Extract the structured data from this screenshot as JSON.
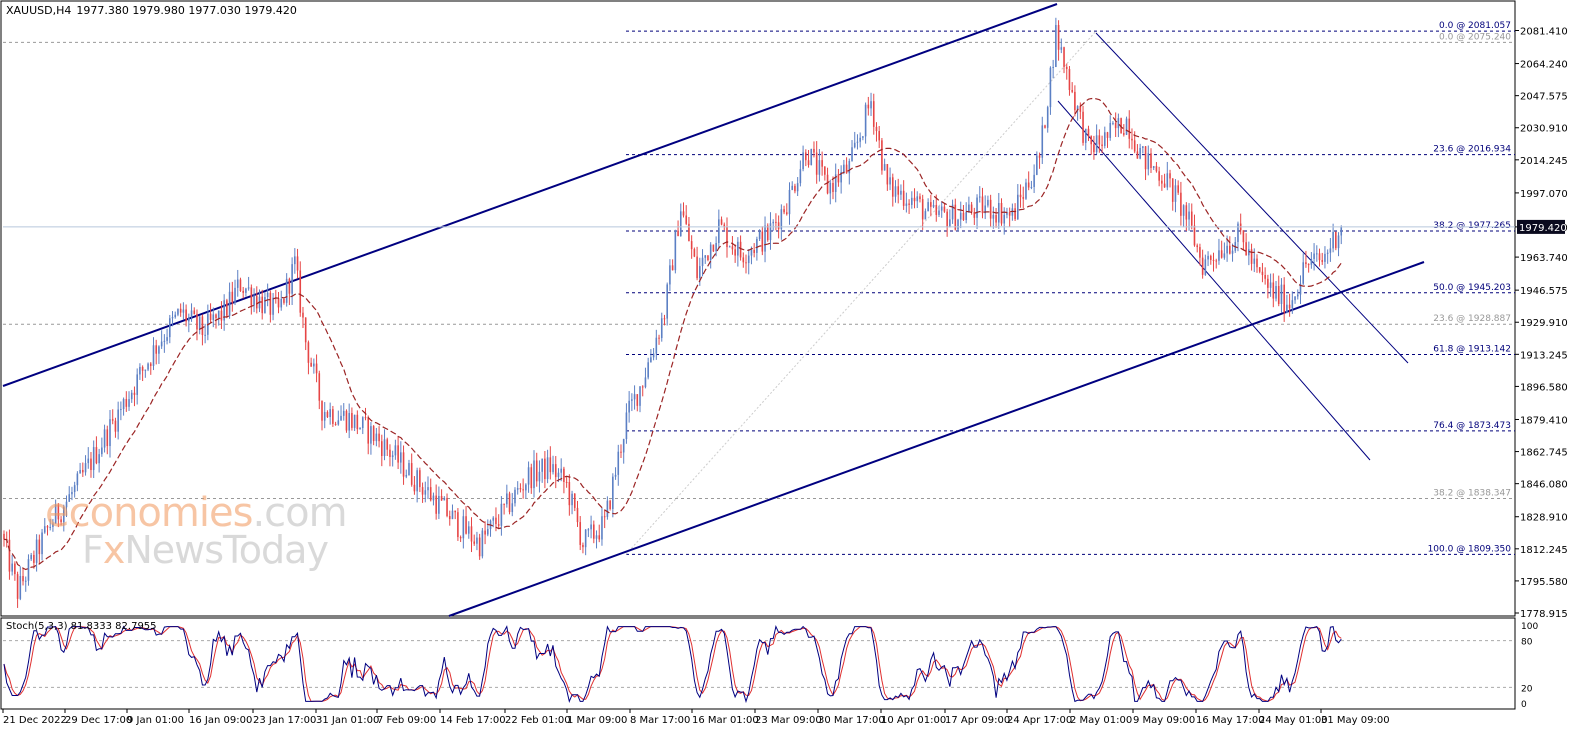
{
  "header": {
    "symbol": "XAUUSD,H4",
    "ohlc": "1977.380 1979.980 1977.030 1979.420"
  },
  "watermark": {
    "line1_a": "economies",
    "line1_b": ".com",
    "line2_a": "F",
    "line2_b": "x",
    "line2_c": "NewsToday"
  },
  "stoch": {
    "label": "Stoch(5,3,3) 81.8333 82.7955",
    "levels": [
      "100",
      "80",
      "20",
      "0"
    ]
  },
  "colors": {
    "bull": "#5b7fc4",
    "bear": "#e64545",
    "ma": "#9b2424",
    "channel": "#000080",
    "fib": "#00007a",
    "fib_faint": "#999999",
    "price_box": "#0a0a1e",
    "stoch_main": "#000080",
    "stoch_signal": "#e03030"
  },
  "chart_data": {
    "type": "candlestick",
    "ylim": [
      1778.915,
      2090
    ],
    "x_tick_labels": [
      "21 Dec 2022",
      "29 Dec 17:00",
      "9 Jan 01:00",
      "16 Jan 09:00",
      "23 Jan 17:00",
      "31 Jan 01:00",
      "7 Feb 09:00",
      "14 Feb 17:00",
      "22 Feb 01:00",
      "1 Mar 09:00",
      "8 Mar 17:00",
      "16 Mar 01:00",
      "23 Mar 09:00",
      "30 Mar 17:00",
      "10 Apr 01:00",
      "17 Apr 09:00",
      "24 Apr 17:00",
      "2 May 01:00",
      "9 May 09:00",
      "16 May 17:00",
      "24 May 01:00",
      "31 May 09:00"
    ],
    "y_tick_labels": [
      "2081.410",
      "2064.240",
      "2047.575",
      "2030.910",
      "2014.245",
      "1997.070",
      "1979.420",
      "1963.740",
      "1946.575",
      "1929.910",
      "1913.245",
      "1896.580",
      "1879.410",
      "1862.745",
      "1846.080",
      "1828.910",
      "1812.245",
      "1795.580",
      "1778.915"
    ],
    "current_price": "1979.420",
    "price_path_anchors": [
      [
        0,
        1820
      ],
      [
        6,
        1790
      ],
      [
        18,
        1825
      ],
      [
        28,
        1845
      ],
      [
        40,
        1875
      ],
      [
        50,
        1900
      ],
      [
        58,
        1920
      ],
      [
        66,
        1935
      ],
      [
        74,
        1925
      ],
      [
        82,
        1935
      ],
      [
        88,
        1950
      ],
      [
        96,
        1940
      ],
      [
        102,
        1935
      ],
      [
        108,
        1960
      ],
      [
        112,
        1920
      ],
      [
        118,
        1885
      ],
      [
        128,
        1880
      ],
      [
        138,
        1870
      ],
      [
        148,
        1855
      ],
      [
        158,
        1840
      ],
      [
        168,
        1825
      ],
      [
        176,
        1815
      ],
      [
        184,
        1830
      ],
      [
        194,
        1850
      ],
      [
        202,
        1855
      ],
      [
        208,
        1845
      ],
      [
        214,
        1815
      ],
      [
        222,
        1825
      ],
      [
        230,
        1880
      ],
      [
        236,
        1900
      ],
      [
        244,
        1935
      ],
      [
        250,
        1990
      ],
      [
        256,
        1955
      ],
      [
        264,
        1980
      ],
      [
        272,
        1965
      ],
      [
        282,
        1975
      ],
      [
        290,
        1995
      ],
      [
        296,
        2020
      ],
      [
        304,
        2000
      ],
      [
        312,
        2010
      ],
      [
        320,
        2045
      ],
      [
        326,
        2000
      ],
      [
        334,
        1995
      ],
      [
        342,
        1985
      ],
      [
        352,
        1985
      ],
      [
        362,
        1990
      ],
      [
        372,
        1985
      ],
      [
        382,
        2015
      ],
      [
        388,
        2080
      ],
      [
        394,
        2050
      ],
      [
        400,
        2020
      ],
      [
        406,
        2025
      ],
      [
        414,
        2035
      ],
      [
        420,
        2015
      ],
      [
        428,
        2005
      ],
      [
        436,
        1985
      ],
      [
        442,
        1960
      ],
      [
        450,
        1970
      ],
      [
        456,
        1975
      ],
      [
        462,
        1955
      ],
      [
        468,
        1945
      ],
      [
        474,
        1940
      ],
      [
        480,
        1960
      ],
      [
        486,
        1962
      ],
      [
        492,
        1978
      ]
    ],
    "indicators": {
      "moving_average": "dashed",
      "stochastic": {
        "k": 81.8333,
        "d": 82.7955,
        "levels": [
          20,
          80
        ]
      }
    },
    "fibonacci": {
      "primary": [
        {
          "label": "0.0 @ 2081.057",
          "value": 2081.057
        },
        {
          "label": "23.6 @ 2016.934",
          "value": 2016.934
        },
        {
          "label": "38.2 @ 1977.265",
          "value": 1977.265
        },
        {
          "label": "50.0 @ 1945.203",
          "value": 1945.203
        },
        {
          "label": "61.8 @ 1913.142",
          "value": 1913.142
        },
        {
          "label": "76.4 @ 1873.473",
          "value": 1873.473
        },
        {
          "label": "100.0 @ 1809.350",
          "value": 1809.35
        }
      ],
      "secondary": [
        {
          "label": "0.0 @ 2075.240",
          "value": 2075.24
        },
        {
          "label": "23.6 @ 1928.887",
          "value": 1928.887
        },
        {
          "label": "38.2 @ 1838.347",
          "value": 1838.347
        }
      ]
    }
  }
}
